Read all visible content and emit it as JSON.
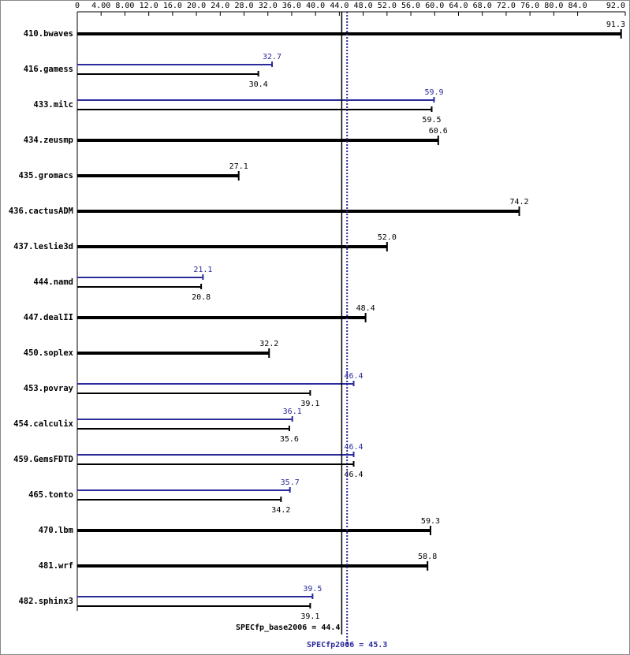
{
  "chart_data": {
    "type": "bar",
    "orientation": "horizontal",
    "categories": [
      "410.bwaves",
      "416.gamess",
      "433.milc",
      "434.zeusmp",
      "435.gromacs",
      "436.cactusADM",
      "437.leslie3d",
      "444.namd",
      "447.dealII",
      "450.soplex",
      "453.povray",
      "454.calculix",
      "459.GemsFDTD",
      "465.tonto",
      "470.lbm",
      "481.wrf",
      "482.sphinx3"
    ],
    "series": [
      {
        "color": "#000000",
        "values": [
          91.3,
          30.4,
          59.5,
          60.6,
          27.1,
          74.2,
          52.0,
          20.8,
          48.4,
          32.2,
          39.1,
          35.6,
          46.4,
          34.2,
          59.3,
          58.8,
          39.1
        ],
        "value_labels": [
          "91.3",
          "30.4",
          "59.5",
          "60.6",
          "27.1",
          "74.2",
          "52.0",
          "20.8",
          "48.4",
          "32.2",
          "39.1",
          "35.6",
          "46.4",
          "34.2",
          "59.3",
          "58.8",
          "39.1"
        ]
      },
      {
        "color": "#2b2b9b",
        "values": [
          null,
          32.7,
          59.9,
          null,
          null,
          null,
          null,
          21.1,
          null,
          null,
          46.4,
          36.1,
          46.4,
          35.7,
          null,
          null,
          39.5
        ],
        "value_labels": [
          null,
          "32.7",
          "59.9",
          null,
          null,
          null,
          null,
          "21.1",
          null,
          null,
          "46.4",
          "36.1",
          "46.4",
          "35.7",
          null,
          null,
          "39.5"
        ]
      }
    ],
    "xlim": [
      0,
      92
    ],
    "xticks": [
      0,
      {
        "value": 4,
        "label": "4.00"
      },
      {
        "value": 8,
        "label": "8.00"
      },
      {
        "value": 12,
        "label": "12.0"
      },
      {
        "value": 16,
        "label": "16.0"
      },
      {
        "value": 20,
        "label": "20.0"
      },
      {
        "value": 24,
        "label": "24.0"
      },
      {
        "value": 28,
        "label": "28.0"
      },
      {
        "value": 32,
        "label": "32.0"
      },
      {
        "value": 36,
        "label": "36.0"
      },
      {
        "value": 40,
        "label": "40.0"
      },
      {
        "value": 44,
        "label": "44.0"
      },
      {
        "value": 48,
        "label": "48.0"
      },
      {
        "value": 52,
        "label": "52.0"
      },
      {
        "value": 56,
        "label": "56.0"
      },
      {
        "value": 60,
        "label": "60.0"
      },
      {
        "value": 64,
        "label": "64.0"
      },
      {
        "value": 68,
        "label": "68.0"
      },
      {
        "value": 72,
        "label": "72.0"
      },
      {
        "value": 76,
        "label": "76.0"
      },
      {
        "value": 80,
        "label": "80.0"
      },
      {
        "value": 84,
        "label": "84.0"
      },
      {
        "value": 92,
        "label": "92.0"
      }
    ],
    "reference_lines": [
      {
        "label": "SPECfp_base2006 = 44.4",
        "value": 44.4,
        "color": "#000000",
        "style": "solid"
      },
      {
        "label": "SPECfp2006 = 45.3",
        "value": 45.3,
        "color": "#2b2b9b",
        "style": "dotted"
      }
    ]
  }
}
